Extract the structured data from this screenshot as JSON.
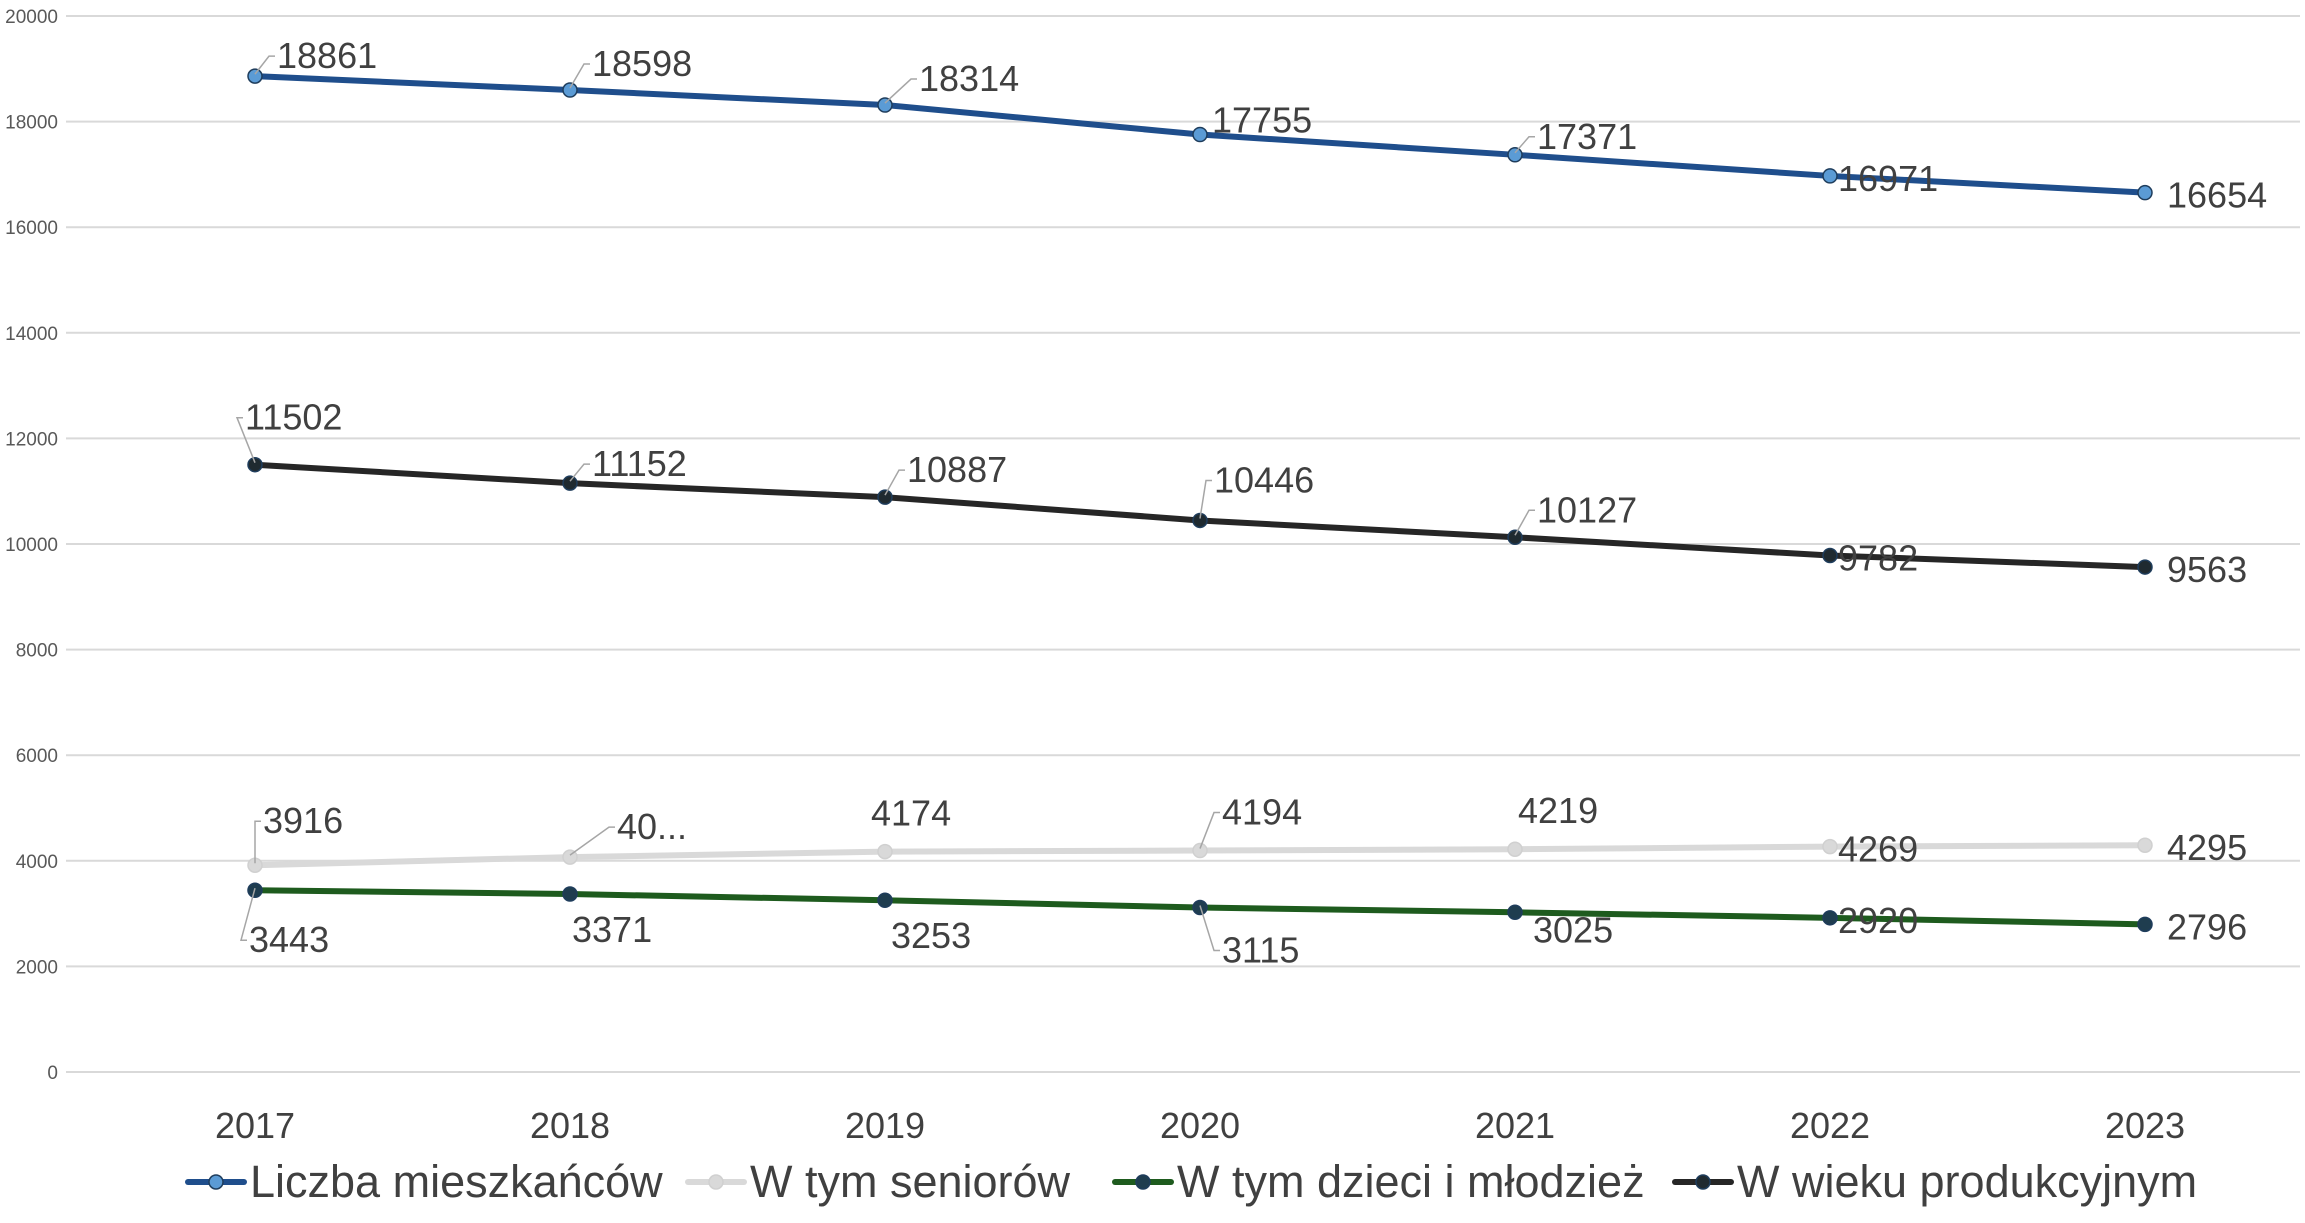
{
  "chart_data": {
    "type": "line",
    "title": "",
    "xlabel": "",
    "ylabel": "",
    "categories": [
      "2017",
      "2018",
      "2019",
      "2020",
      "2021",
      "2022",
      "2023"
    ],
    "ylim": [
      0,
      20000
    ],
    "yticks": [
      0,
      2000,
      4000,
      6000,
      8000,
      10000,
      12000,
      14000,
      16000,
      18000,
      20000
    ],
    "grid": true,
    "legend_position": "bottom",
    "series": [
      {
        "key": "liczba",
        "name": "Liczba mieszkańców",
        "color": "#1f4e8c",
        "marker_fill": "#5b9bd5",
        "values": [
          18861,
          18598,
          18314,
          17755,
          17371,
          16971,
          16654
        ],
        "labels": [
          "18861",
          "18598",
          "18314",
          "17755",
          "17371",
          "16971",
          "16654"
        ]
      },
      {
        "key": "seniorzy",
        "name": "W tym seniorów",
        "color": "#d9d9d9",
        "marker_fill": "#d9d9d9",
        "values": [
          3916,
          4070,
          4174,
          4194,
          4219,
          4269,
          4295
        ],
        "labels": [
          "3916",
          "40...",
          "4174",
          "4194",
          "4219",
          "4269",
          "4295"
        ]
      },
      {
        "key": "dzieci",
        "name": "W tym dzieci i młodzież",
        "color": "#1e5b1e",
        "marker_fill": "#1f3d4f",
        "values": [
          3443,
          3371,
          3253,
          3115,
          3025,
          2920,
          2796
        ],
        "labels": [
          "3443",
          "3371",
          "3253",
          "3115",
          "3025",
          "2920",
          "2796"
        ]
      },
      {
        "key": "produkcyjny",
        "name": "W wieku produkcyjnym",
        "color": "#262626",
        "marker_fill": "#1f2a30",
        "values": [
          11502,
          11152,
          10887,
          10446,
          10127,
          9782,
          9563
        ],
        "labels": [
          "11502",
          "11152",
          "10887",
          "10446",
          "10127",
          "9782",
          "9563"
        ]
      }
    ]
  }
}
